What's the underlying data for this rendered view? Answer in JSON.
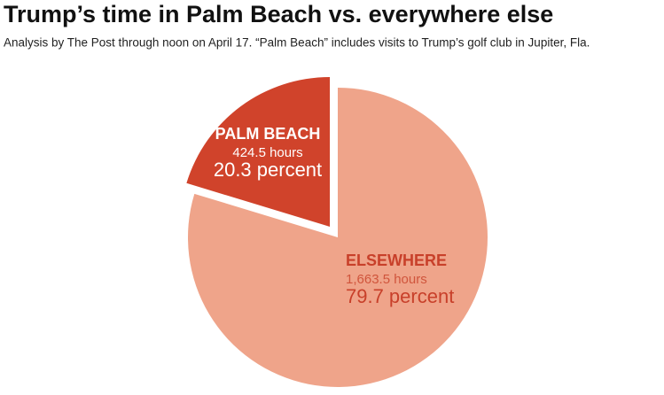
{
  "chart_data": {
    "type": "pie",
    "title": "Trump’s time in Palm Beach vs. everywhere else",
    "subtitle": "Analysis by The Post through noon on April 17. “Palm Beach” includes visits to Trump’s golf club in Jupiter, Fla.",
    "categories": [
      "PALM BEACH",
      "ELSEWHERE"
    ],
    "values": [
      20.3,
      79.7
    ],
    "value_labels": [
      "20.3 percent",
      "79.7 percent"
    ],
    "hours": [
      424.5,
      1663.5
    ],
    "hours_labels": [
      "424.5 hours",
      "1,663.5 hours"
    ],
    "colors": [
      "#d0432b",
      "#efa48a"
    ],
    "exploded": [
      true,
      false
    ]
  }
}
